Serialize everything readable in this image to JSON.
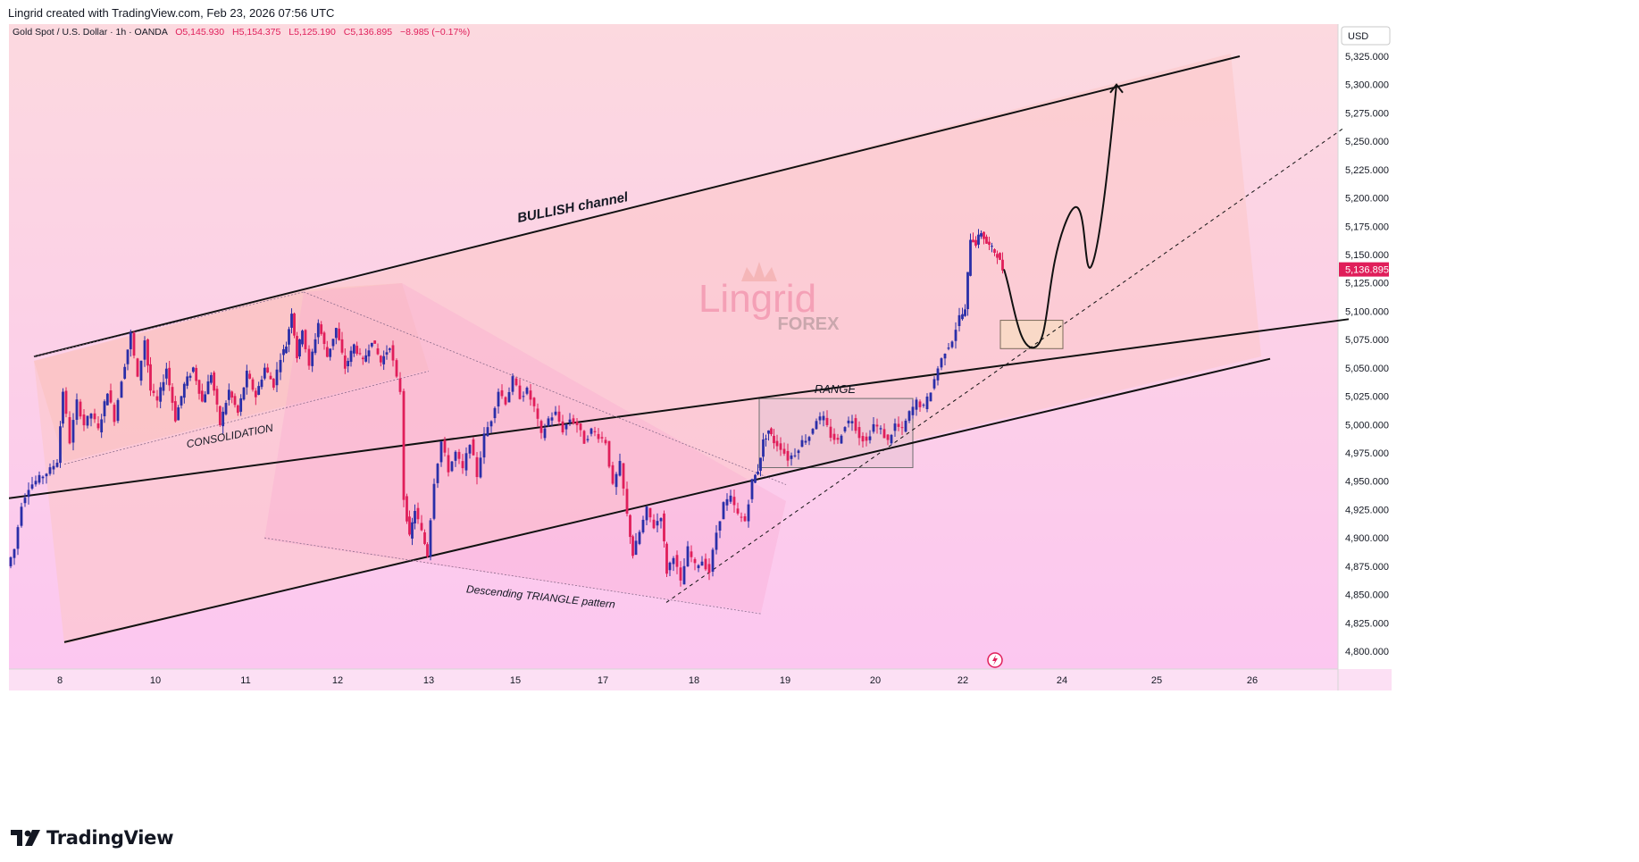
{
  "header": {
    "attribution": "Lingrid created with TradingView.com, Feb 23, 2026 07:56 UTC"
  },
  "legend": {
    "symbol": "Gold Spot / U.S. Dollar · 1h · OANDA",
    "open": "O5,145.930",
    "high": "H5,154.375",
    "low": "L5,125.190",
    "close": "C5,136.895",
    "change": "−8.985 (−0.17%)"
  },
  "currency_label": "USD",
  "last_price_label": "5,136.895",
  "annotations": {
    "bullish_channel": "BULLISH channel",
    "consolidation": "CONSOLIDATION",
    "range": "RANGE",
    "triangle": "Descending TRIANGLE pattern"
  },
  "watermark": {
    "line1": "Lingrid",
    "line2": "FOREX"
  },
  "footer": {
    "brand": "TradingView"
  },
  "colors": {
    "up": "#2a2ea8",
    "down": "#e01e5a",
    "bg_top": "#fcd9df",
    "bg_bottom": "#fcc6ef",
    "price_tag": "#e01e5a"
  },
  "chart_data": {
    "type": "candlestick",
    "symbol": "Gold Spot / U.S. Dollar",
    "interval": "1h",
    "ylim": [
      4780,
      5340
    ],
    "y_ticks": [
      4800,
      4825,
      4850,
      4875,
      4900,
      4925,
      4950,
      4975,
      5000,
      5025,
      5050,
      5075,
      5100,
      5125,
      5150,
      5175,
      5200,
      5225,
      5250,
      5275,
      5300,
      5325
    ],
    "y_tick_labels": [
      "4,800.000",
      "4,825.000",
      "4,850.000",
      "4,875.000",
      "4,900.000",
      "4,925.000",
      "4,950.000",
      "4,975.000",
      "5,000.000",
      "5,025.000",
      "5,050.000",
      "5,075.000",
      "5,100.000",
      "5,125.000",
      "5,150.000",
      "5,175.000",
      "5,200.000",
      "5,225.000",
      "5,250.000",
      "5,275.000",
      "5,300.000",
      "5,325.000"
    ],
    "x_ticks": [
      "8",
      "10",
      "11",
      "12",
      "13",
      "15",
      "17",
      "18",
      "19",
      "20",
      "22",
      "24",
      "25",
      "26"
    ],
    "last_close": 5136.895,
    "price_path": [
      [
        0,
        4875
      ],
      [
        8,
        4890
      ],
      [
        16,
        4930
      ],
      [
        24,
        4945
      ],
      [
        32,
        4950
      ],
      [
        40,
        4955
      ],
      [
        48,
        4960
      ],
      [
        56,
        4968
      ],
      [
        62,
        5030
      ],
      [
        70,
        4985
      ],
      [
        78,
        5020
      ],
      [
        86,
        5000
      ],
      [
        94,
        5010
      ],
      [
        102,
        4995
      ],
      [
        112,
        5030
      ],
      [
        120,
        5005
      ],
      [
        128,
        5040
      ],
      [
        138,
        5080
      ],
      [
        146,
        5040
      ],
      [
        154,
        5075
      ],
      [
        160,
        5030
      ],
      [
        168,
        5020
      ],
      [
        178,
        5050
      ],
      [
        188,
        5005
      ],
      [
        198,
        5035
      ],
      [
        208,
        5050
      ],
      [
        218,
        5020
      ],
      [
        228,
        5045
      ],
      [
        238,
        5000
      ],
      [
        248,
        5030
      ],
      [
        258,
        5010
      ],
      [
        268,
        5045
      ],
      [
        278,
        5025
      ],
      [
        288,
        5050
      ],
      [
        298,
        5035
      ],
      [
        306,
        5060
      ],
      [
        312,
        5070
      ],
      [
        318,
        5100
      ],
      [
        324,
        5060
      ],
      [
        330,
        5085
      ],
      [
        338,
        5050
      ],
      [
        348,
        5090
      ],
      [
        358,
        5060
      ],
      [
        368,
        5085
      ],
      [
        378,
        5050
      ],
      [
        388,
        5070
      ],
      [
        398,
        5055
      ],
      [
        408,
        5075
      ],
      [
        418,
        5055
      ],
      [
        428,
        5070
      ],
      [
        436,
        5040
      ],
      [
        440,
        5030
      ],
      [
        444,
        4935
      ],
      [
        450,
        4900
      ],
      [
        456,
        4925
      ],
      [
        464,
        4905
      ],
      [
        470,
        4885
      ],
      [
        478,
        4950
      ],
      [
        486,
        4985
      ],
      [
        494,
        4960
      ],
      [
        502,
        4975
      ],
      [
        510,
        4960
      ],
      [
        518,
        4985
      ],
      [
        526,
        4955
      ],
      [
        534,
        4990
      ],
      [
        542,
        5005
      ],
      [
        550,
        5030
      ],
      [
        558,
        5020
      ],
      [
        566,
        5040
      ],
      [
        574,
        5025
      ],
      [
        582,
        5030
      ],
      [
        590,
        5015
      ],
      [
        598,
        4990
      ],
      [
        606,
        5005
      ],
      [
        614,
        5010
      ],
      [
        622,
        4995
      ],
      [
        630,
        5005
      ],
      [
        638,
        5000
      ],
      [
        646,
        4985
      ],
      [
        654,
        4995
      ],
      [
        662,
        4990
      ],
      [
        670,
        4985
      ],
      [
        678,
        4945
      ],
      [
        686,
        4965
      ],
      [
        694,
        4920
      ],
      [
        700,
        4885
      ],
      [
        708,
        4905
      ],
      [
        716,
        4925
      ],
      [
        724,
        4910
      ],
      [
        732,
        4920
      ],
      [
        738,
        4870
      ],
      [
        746,
        4885
      ],
      [
        754,
        4860
      ],
      [
        762,
        4890
      ],
      [
        770,
        4875
      ],
      [
        778,
        4880
      ],
      [
        786,
        4870
      ],
      [
        794,
        4905
      ],
      [
        802,
        4930
      ],
      [
        810,
        4935
      ],
      [
        818,
        4920
      ],
      [
        826,
        4915
      ],
      [
        834,
        4950
      ],
      [
        840,
        4960
      ],
      [
        846,
        4985
      ],
      [
        852,
        4995
      ],
      [
        858,
        4985
      ],
      [
        866,
        4980
      ],
      [
        874,
        4970
      ],
      [
        882,
        4975
      ],
      [
        890,
        4985
      ],
      [
        898,
        4990
      ],
      [
        906,
        5005
      ],
      [
        914,
        5005
      ],
      [
        922,
        4990
      ],
      [
        930,
        4985
      ],
      [
        938,
        5000
      ],
      [
        946,
        5005
      ],
      [
        954,
        4990
      ],
      [
        962,
        4985
      ],
      [
        970,
        5000
      ],
      [
        978,
        4995
      ],
      [
        986,
        4985
      ],
      [
        994,
        5000
      ],
      [
        1002,
        4995
      ],
      [
        1010,
        5010
      ],
      [
        1018,
        5020
      ],
      [
        1026,
        5015
      ],
      [
        1034,
        5030
      ],
      [
        1042,
        5050
      ],
      [
        1050,
        5065
      ],
      [
        1058,
        5075
      ],
      [
        1066,
        5095
      ],
      [
        1072,
        5100
      ],
      [
        1078,
        5165
      ],
      [
        1084,
        5160
      ],
      [
        1090,
        5170
      ],
      [
        1096,
        5160
      ],
      [
        1102,
        5155
      ],
      [
        1108,
        5150
      ],
      [
        1114,
        5137
      ]
    ],
    "trendlines": [
      {
        "name": "channel-top",
        "from": [
          28,
          5060
        ],
        "to": [
          1378,
          5325
        ]
      },
      {
        "name": "channel-mid",
        "from": [
          0,
          4935
        ],
        "to": [
          1500,
          5093
        ]
      },
      {
        "name": "channel-bottom",
        "from": [
          62,
          4808
        ],
        "to": [
          1412,
          5058
        ]
      },
      {
        "name": "consolidation-top",
        "from": [
          28,
          5060
        ],
        "to": [
          330,
          5117
        ]
      },
      {
        "name": "consolidation-bottom",
        "from": [
          62,
          4965
        ],
        "to": [
          470,
          5047
        ]
      },
      {
        "name": "triangle-top",
        "from": [
          330,
          5117
        ],
        "to": [
          870,
          4947
        ]
      },
      {
        "name": "triangle-bottom",
        "from": [
          286,
          4900
        ],
        "to": [
          842,
          4833
        ]
      },
      {
        "name": "support-dashed",
        "from": [
          736,
          4843
        ],
        "to": [
          1495,
          5262
        ]
      }
    ],
    "zones": [
      {
        "name": "range-box",
        "x": [
          840,
          1012
        ],
        "y": [
          4962,
          5023
        ]
      },
      {
        "name": "target-zone",
        "x": [
          1110,
          1180
        ],
        "y": [
          5067,
          5092
        ]
      }
    ],
    "projection": [
      [
        1114,
        5137
      ],
      [
        1148,
        5068
      ],
      [
        1168,
        5150
      ],
      [
        1184,
        5180
      ],
      [
        1212,
        5140
      ],
      [
        1240,
        5300
      ]
    ]
  }
}
